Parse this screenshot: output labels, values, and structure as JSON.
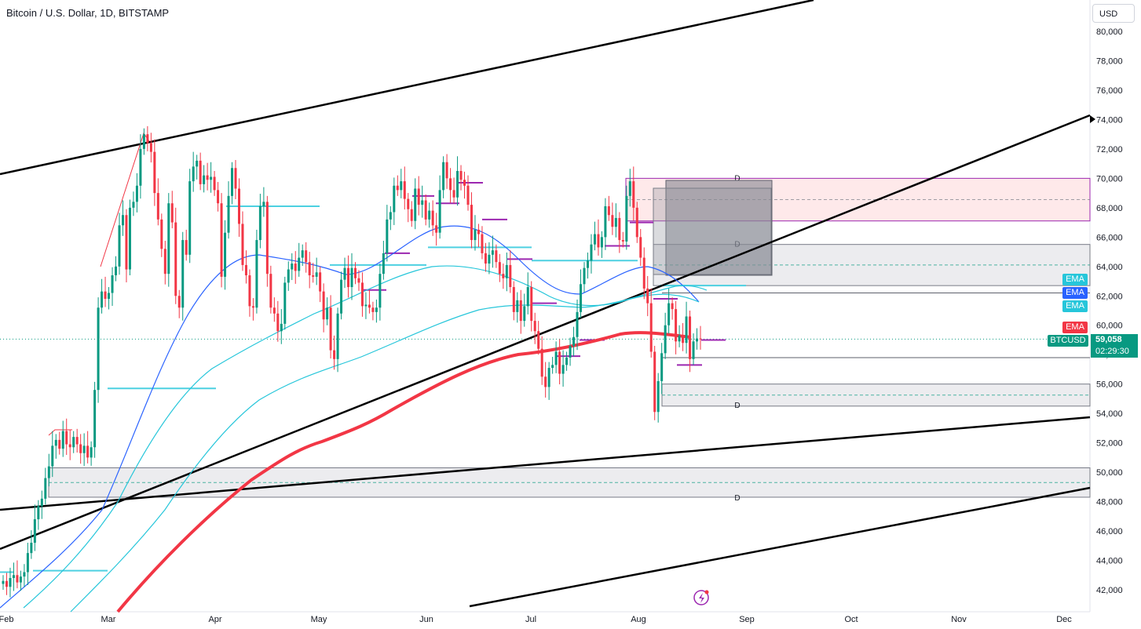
{
  "header": {
    "title": "Bitcoin / U.S. Dollar, 1D, BITSTAMP",
    "currency": "USD"
  },
  "chart_data": {
    "type": "candlestick",
    "title": "Bitcoin / U.S. Dollar, 1D, BITSTAMP",
    "x_ticks": [
      "Feb",
      "Mar",
      "Apr",
      "May",
      "Jun",
      "Jul",
      "Aug",
      "Sep",
      "Oct",
      "Nov",
      "Dec"
    ],
    "y_ticks": [
      42000,
      44000,
      46000,
      48000,
      50000,
      52000,
      54000,
      56000,
      58000,
      60000,
      62000,
      64000,
      66000,
      68000,
      70000,
      72000,
      74000,
      76000,
      78000,
      80000
    ],
    "ylim": [
      41000,
      81200
    ],
    "current_price": "59,058",
    "countdown": "02:29:30",
    "symbol_tag": "BTCUSD",
    "indicator_tags": [
      {
        "label": "EMA",
        "color": "#26c6da",
        "value": 63800
      },
      {
        "label": "EMA",
        "color": "#2962ff",
        "value": 62900
      },
      {
        "label": "EMA",
        "color": "#26c6da",
        "value": 62100
      },
      {
        "label": "EMA",
        "color": "#f23645",
        "value": 59900
      }
    ],
    "zones": [
      {
        "label": "D",
        "from": 67100,
        "to": 70000,
        "color": "#f7525f",
        "opacity": 0.13,
        "border": "#9c27b0"
      },
      {
        "label": "D",
        "from": 62700,
        "to": 65500,
        "color": "#b2b5be",
        "opacity": 0.25,
        "border": "#787b86"
      },
      {
        "label": "D",
        "from": 54500,
        "to": 56000,
        "color": "#b2b5be",
        "opacity": 0.25,
        "border": "#787b86"
      },
      {
        "label": "D",
        "from": 48300,
        "to": 50300,
        "color": "#b2b5be",
        "opacity": 0.25,
        "border": "#787b86"
      }
    ],
    "colors": {
      "up": "#089981",
      "down": "#f23645",
      "ema200": "#f23645",
      "ema_blue": "#2962ff",
      "ema_cyan": "#26c6da",
      "trend": "#000000"
    }
  }
}
